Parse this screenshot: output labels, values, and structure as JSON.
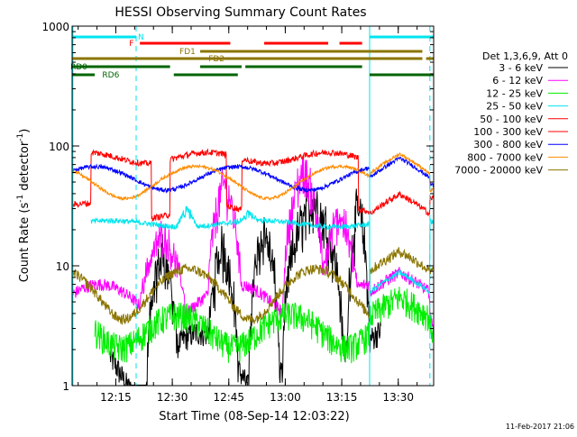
{
  "chart_data": {
    "type": "line",
    "title": "HESSI Observing Summary Count Rates",
    "xlabel": "Start Time (08-Sep-14 12:03:22)",
    "ylabel_main": "Count Rate (s",
    "ylabel_sup1": "-1",
    "ylabel_mid": " detector",
    "ylabel_sup2": "-1",
    "ylabel_end": ")",
    "y_scale": "log",
    "ylim": [
      1,
      1000
    ],
    "xlim_minutes": [
      0,
      96
    ],
    "x_tick_labels": [
      "12:15",
      "12:30",
      "12:45",
      "13:00",
      "13:15",
      "13:30"
    ],
    "x_tick_minutes": [
      11.6,
      26.6,
      41.6,
      56.6,
      71.6,
      86.6
    ],
    "y_tick_labels": [
      "1",
      "10",
      "100",
      "1000"
    ],
    "y_tick_values": [
      1,
      10,
      100,
      1000
    ],
    "legend_header": "Det 1,3,6,9, Att 0",
    "legend_position": "right",
    "series": [
      {
        "name": "3 - 6 keV",
        "color": "#000000",
        "base": 1.8,
        "amp": 0.55,
        "noise": 0.25,
        "period": 32,
        "phase": 1.2,
        "gaps": [
          [
            0,
            10
          ],
          [
            82,
            96
          ]
        ],
        "bursts": [
          [
            20,
            28,
            14
          ],
          [
            36,
            44,
            16
          ],
          [
            47,
            55,
            22
          ],
          [
            56,
            72,
            40
          ],
          [
            73,
            79,
            34
          ]
        ],
        "late": [
          [
            79,
            92,
            3.2
          ],
          [
            92,
            95,
            1.3
          ]
        ]
      },
      {
        "name": "6 - 12 keV",
        "color": "#ff00ff",
        "base": 5.2,
        "amp": 0.35,
        "noise": 0.12,
        "period": 36,
        "phase": 0.3,
        "gaps": [],
        "bursts": [
          [
            18,
            30,
            20
          ],
          [
            36,
            45,
            55
          ],
          [
            56,
            67,
            70
          ],
          [
            66,
            76,
            30
          ]
        ],
        "late": [
          [
            79,
            95,
            8
          ]
        ]
      },
      {
        "name": "12 - 25 keV",
        "color": "#00ee00",
        "base": 3.0,
        "amp": 0.3,
        "noise": 0.28,
        "period": 30,
        "phase": 2.0,
        "gaps": [
          [
            0,
            6
          ]
        ],
        "bursts": [],
        "late": [
          [
            79,
            95,
            5
          ]
        ]
      },
      {
        "name": "25 - 50 keV",
        "color": "#00e5ee",
        "base": 22.5,
        "amp": 0.06,
        "noise": 0.05,
        "period": 40,
        "phase": 0.0,
        "gaps": [
          [
            0,
            5
          ]
        ],
        "bursts": [
          [
            28,
            33,
            30
          ],
          [
            44,
            50,
            28
          ]
        ],
        "late": [
          [
            79,
            95,
            8
          ]
        ]
      },
      {
        "name": "50 - 100 keV",
        "color": "#ff0000",
        "base": 30,
        "amp": 0.35,
        "noise": 0.06,
        "period": 32,
        "phase": 0.8,
        "gaps": [],
        "bursts": [],
        "late": [
          [
            79,
            95,
            36
          ]
        ],
        "high": [
          [
            0,
            5,
            30
          ],
          [
            5,
            21,
            80
          ],
          [
            21,
            26,
            28
          ],
          [
            26,
            41,
            80
          ],
          [
            41,
            45,
            30
          ],
          [
            45,
            76,
            80
          ],
          [
            76,
            79,
            30
          ]
        ]
      },
      {
        "name": "100 - 300 keV",
        "color": "#ff0000",
        "base": 80,
        "amp": 0.08,
        "noise": 0.03,
        "period": 30,
        "phase": 0.0,
        "gaps": [
          [
            0,
            96
          ]
        ],
        "bursts": [],
        "late": []
      },
      {
        "name": "300 - 800 keV",
        "color": "#0000ff",
        "base": 55,
        "amp": 0.22,
        "noise": 0.04,
        "period": 38,
        "phase": 0.6,
        "gaps": [],
        "bursts": [],
        "late": [
          [
            79,
            95,
            72
          ]
        ]
      },
      {
        "name": "800 - 7000 keV",
        "color": "#ff8c00",
        "base": 52,
        "amp": 0.3,
        "noise": 0.03,
        "period": 38,
        "phase": 2.4,
        "gaps": [],
        "bursts": [],
        "late": [
          [
            79,
            95,
            78
          ]
        ]
      },
      {
        "name": "7000 - 20000 keV",
        "color": "#8b7500",
        "base": 6.5,
        "amp": 0.45,
        "noise": 0.1,
        "period": 34,
        "phase": 2.2,
        "gaps": [],
        "bursts": [],
        "late": [
          [
            79,
            95,
            12
          ]
        ]
      }
    ],
    "flag_bars": [
      {
        "label": "N",
        "color": "#00e5ee",
        "level": 0,
        "segments": [
          [
            0,
            17
          ],
          [
            79,
            96
          ]
        ]
      },
      {
        "label": "F",
        "color": "#ff0000",
        "level": 1,
        "segments": [
          [
            18,
            42
          ],
          [
            51,
            68
          ],
          [
            71,
            77
          ]
        ]
      },
      {
        "label": "FD1",
        "color": "#8b7500",
        "level": 2,
        "segments": [
          [
            34,
            93
          ]
        ]
      },
      {
        "label": "FD2",
        "color": "#8b7500",
        "level": 3,
        "segments": [
          [
            0,
            93
          ],
          [
            94,
            96
          ]
        ]
      },
      {
        "label": "RD0",
        "color": "#006400",
        "level": 4,
        "segments": [
          [
            0,
            26
          ],
          [
            34,
            45
          ],
          [
            46,
            77
          ]
        ]
      },
      {
        "label": "RD6",
        "color": "#006400",
        "level": 5,
        "segments": [
          [
            0,
            6
          ],
          [
            27,
            44
          ],
          [
            79,
            96
          ]
        ]
      }
    ],
    "vlines_minutes_solid": [
      0.2,
      79
    ],
    "vlines_minutes_dashed": [
      17,
      95
    ],
    "footer_date": "11-Feb-2017 21:06"
  }
}
